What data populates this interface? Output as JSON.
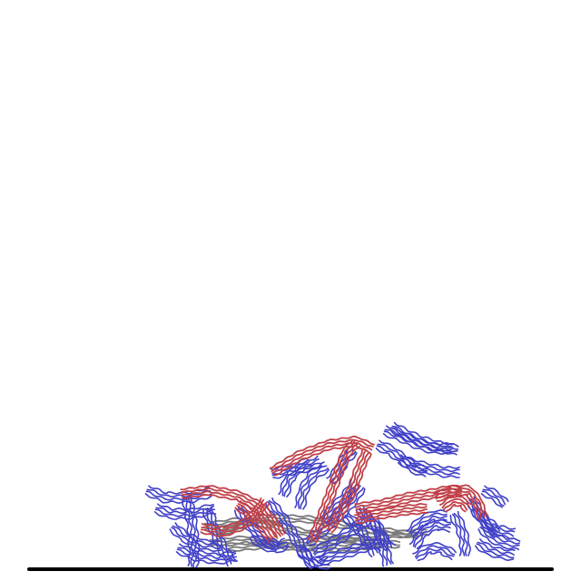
{
  "figure": {
    "kind": "polymer-brush-simulation-snapshot",
    "colors": {
      "background": "#ffffff",
      "substrate": "#000000",
      "brush_chain": "#4040c8",
      "bridge_chain": "#c04048",
      "core_chain": "#7a7a7a"
    },
    "legend": []
  }
}
